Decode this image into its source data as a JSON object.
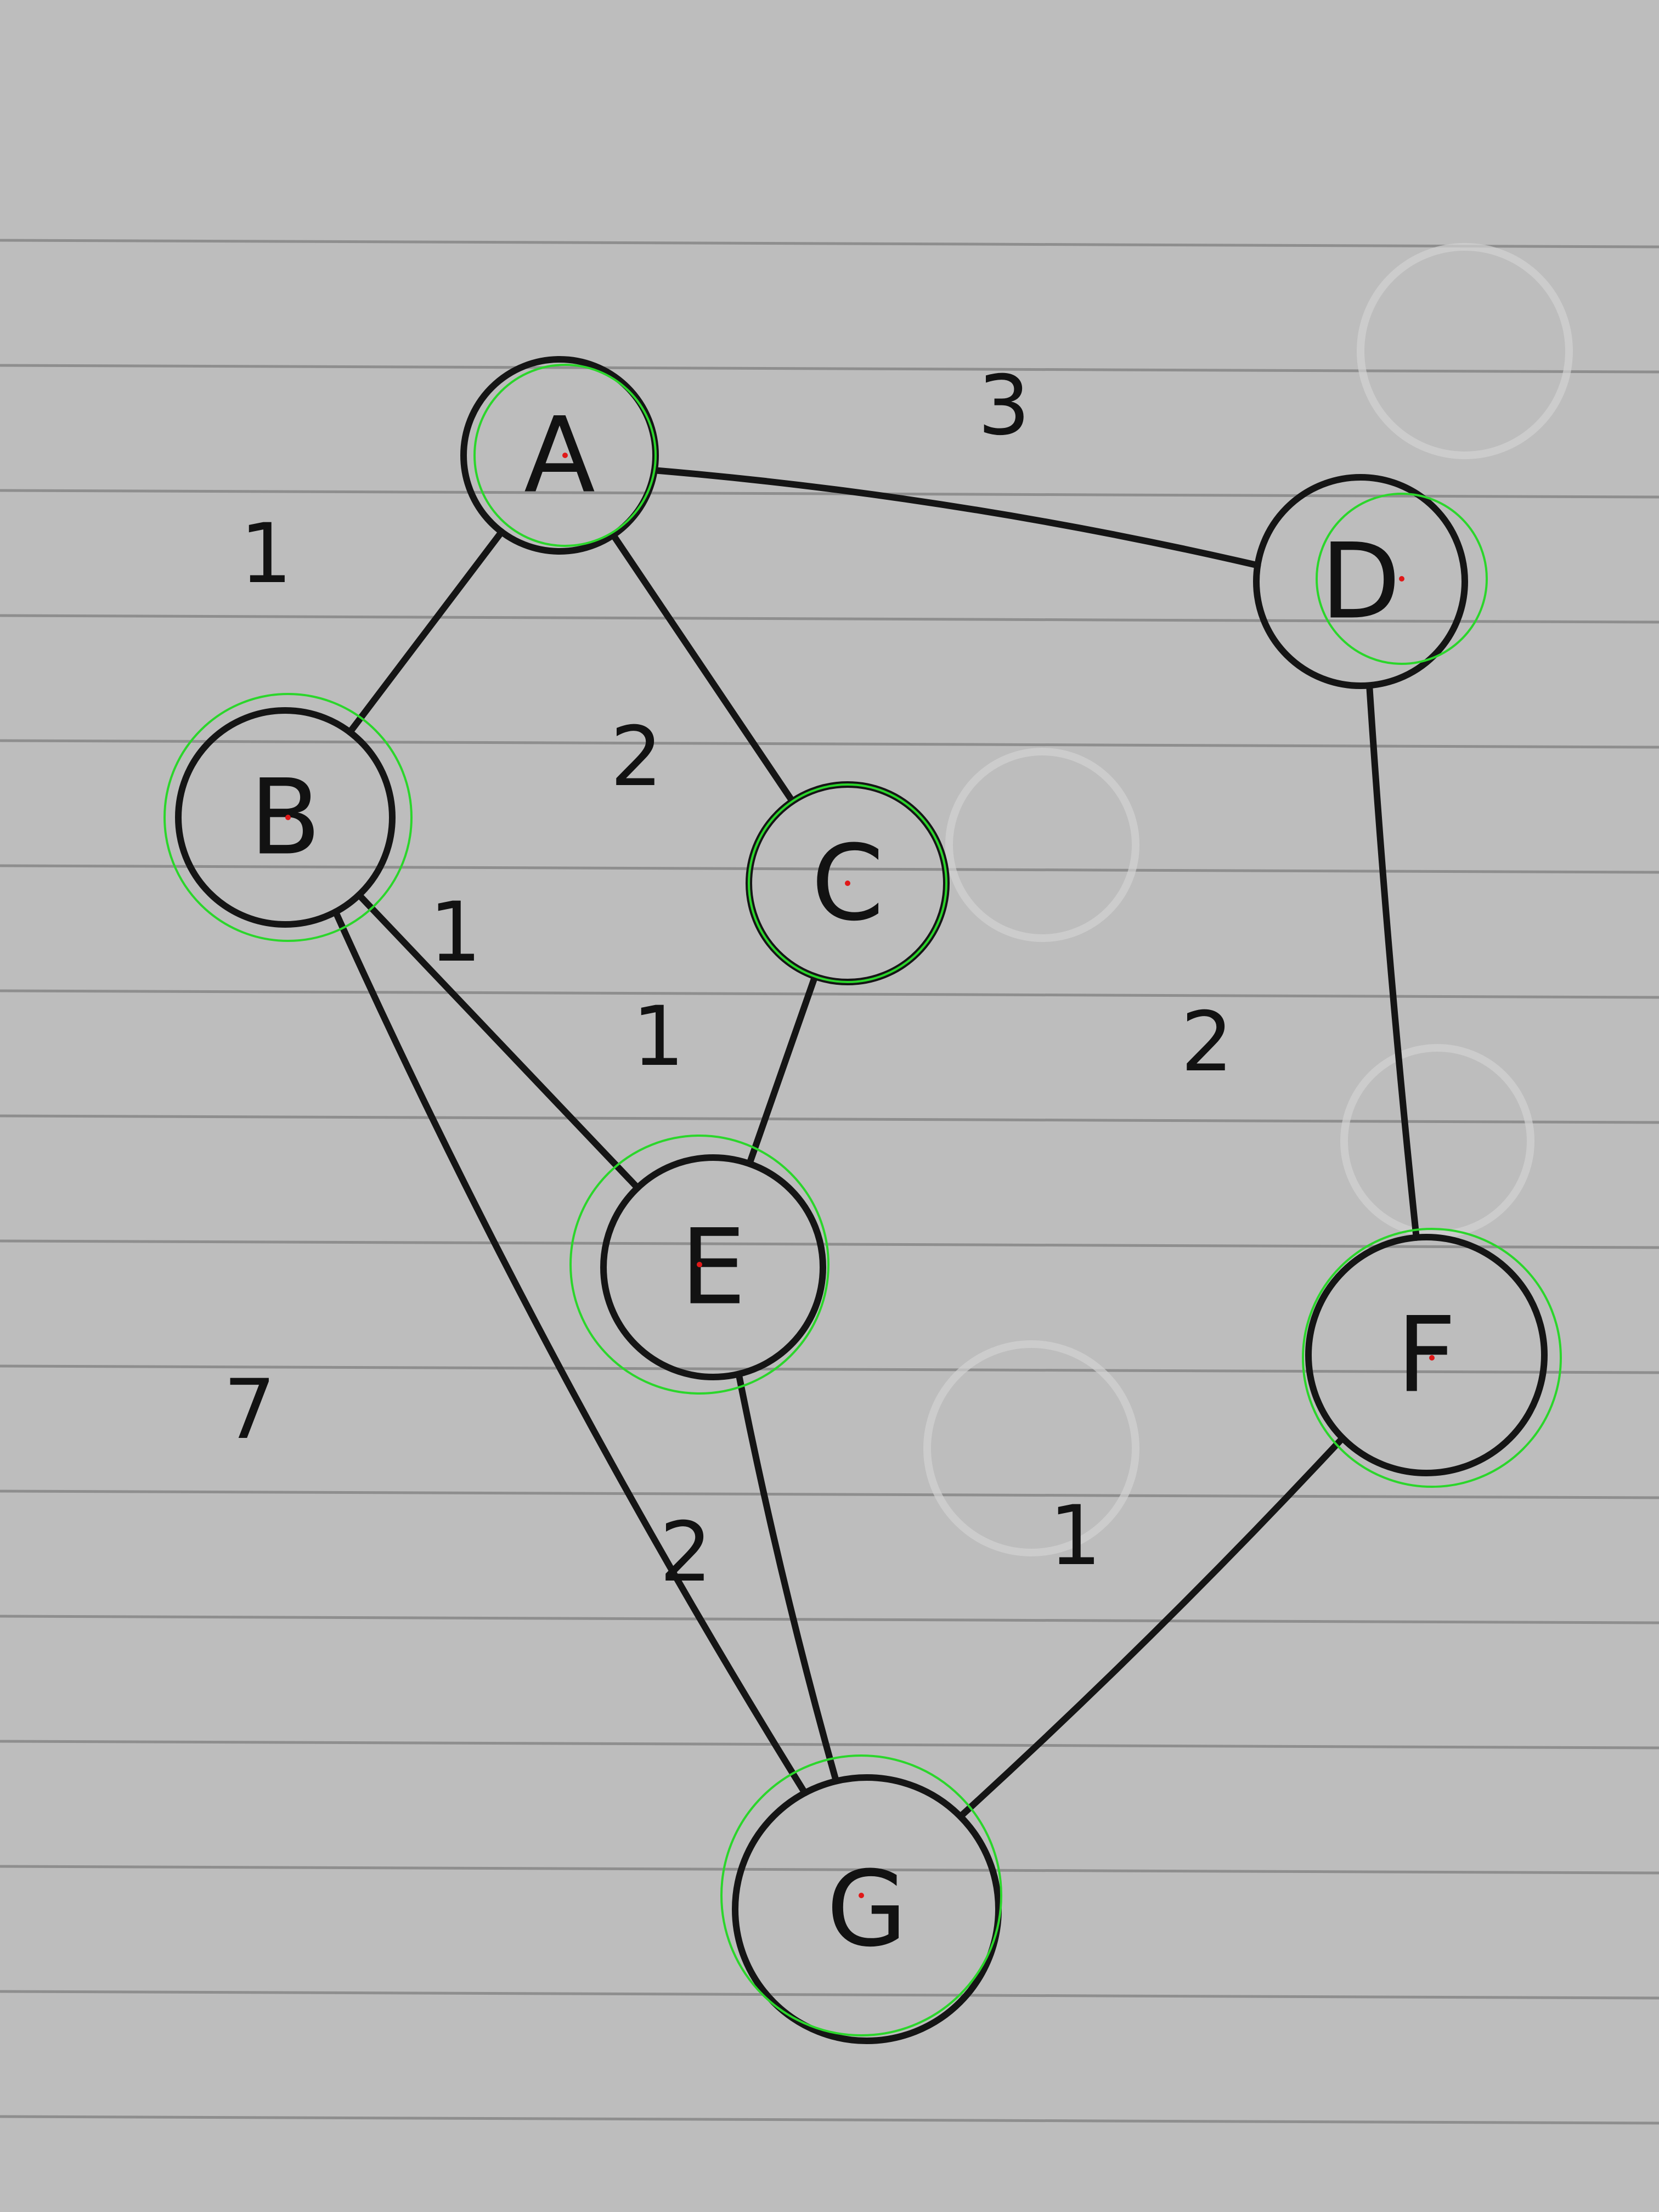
{
  "diagram": {
    "type": "weighted-undirected-graph",
    "nodes": [
      {
        "id": "A",
        "label": "A"
      },
      {
        "id": "B",
        "label": "B"
      },
      {
        "id": "C",
        "label": "C"
      },
      {
        "id": "D",
        "label": "D"
      },
      {
        "id": "E",
        "label": "E"
      },
      {
        "id": "F",
        "label": "F"
      },
      {
        "id": "G",
        "label": "G"
      }
    ],
    "edges": [
      {
        "from": "A",
        "to": "B",
        "weight": "1"
      },
      {
        "from": "A",
        "to": "C",
        "weight": "2"
      },
      {
        "from": "A",
        "to": "D",
        "weight": "3"
      },
      {
        "from": "B",
        "to": "E",
        "weight": "1"
      },
      {
        "from": "B",
        "to": "G",
        "weight": "7"
      },
      {
        "from": "C",
        "to": "E",
        "weight": "1"
      },
      {
        "from": "D",
        "to": "F",
        "weight": "2"
      },
      {
        "from": "E",
        "to": "G",
        "weight": "2"
      },
      {
        "from": "F",
        "to": "G",
        "weight": "1"
      }
    ]
  },
  "colors": {
    "paper": "#bdbdbd",
    "ink": "#151515",
    "detection_circle": "#2bd62b",
    "detection_center": "#e01818"
  }
}
